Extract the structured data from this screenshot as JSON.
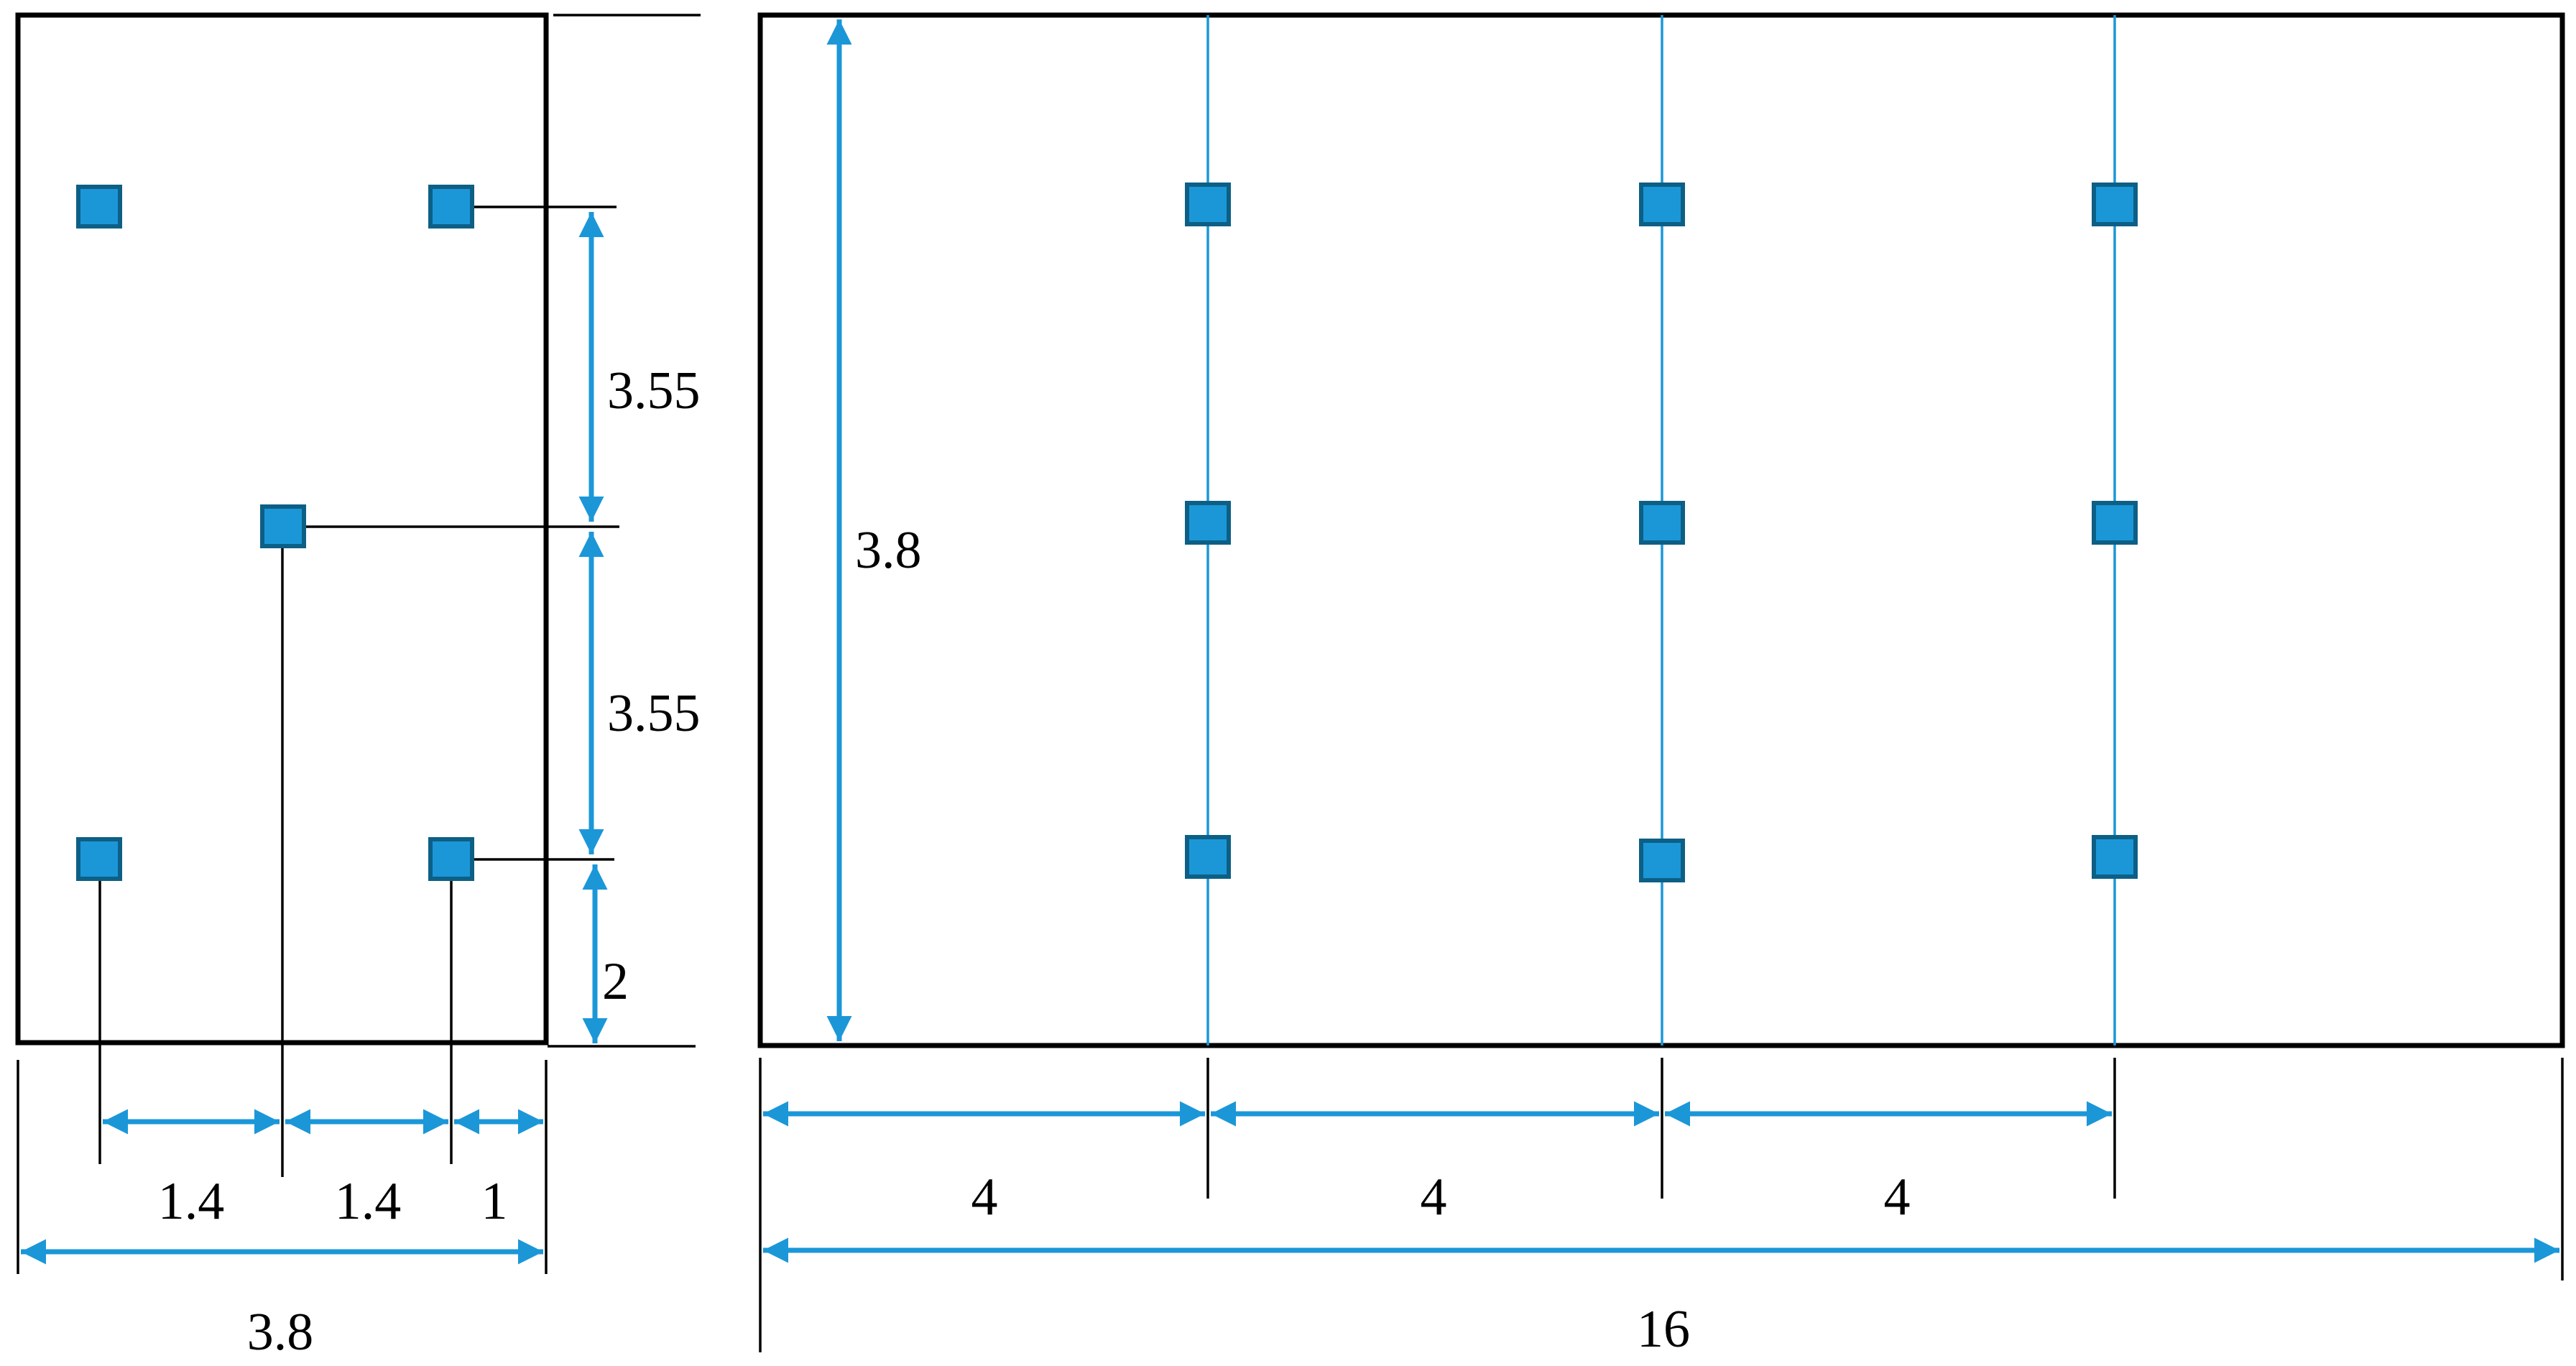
{
  "colors": {
    "frame": "#000000",
    "accent": "#1b97d8",
    "node_stroke": "#0d5f85"
  },
  "labels": {
    "side_spacing_top": "3.55",
    "side_spacing_mid": "3.55",
    "side_edge_bottom": "2",
    "side_bottom_a": "1.4",
    "side_bottom_b": "1.4",
    "side_bottom_c": "1",
    "side_total_width": "3.8",
    "plan_height": "3.8",
    "plan_spacing_1": "4",
    "plan_spacing_2": "4",
    "plan_spacing_3": "4",
    "plan_total_length": "16"
  }
}
